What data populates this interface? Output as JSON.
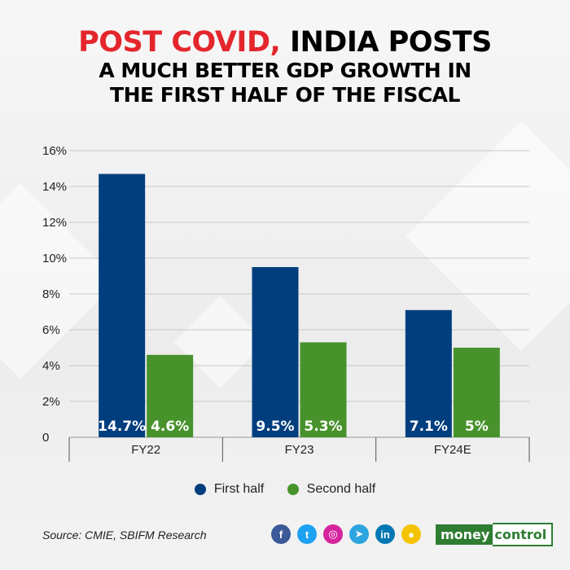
{
  "title": {
    "line1_highlight": "POST COVID,",
    "line1_rest": " INDIA POSTS",
    "line2": "A MUCH BETTER GDP GROWTH IN",
    "line3": "THE FIRST HALF OF THE FISCAL"
  },
  "chart_data": {
    "type": "bar",
    "categories": [
      "FY22",
      "FY23",
      "FY24E"
    ],
    "series": [
      {
        "name": "First half",
        "values": [
          14.7,
          9.5,
          7.1
        ],
        "labels": [
          "14.7%",
          "9.5%",
          "7.1%"
        ],
        "color": "#003e7e"
      },
      {
        "name": "Second half",
        "values": [
          4.6,
          5.3,
          5
        ],
        "labels": [
          "4.6%",
          "5.3%",
          "5%"
        ],
        "color": "#48922c"
      }
    ],
    "ylim": [
      0,
      16
    ],
    "yticks": [
      0,
      2,
      4,
      6,
      8,
      10,
      12,
      14,
      16
    ],
    "ytick_labels": [
      "0",
      "2%",
      "4%",
      "6%",
      "8%",
      "10%",
      "12%",
      "14%",
      "16%"
    ],
    "grid": true,
    "legend": "bottom"
  },
  "source": "Source: CMIE, SBIFM Research",
  "social": [
    {
      "icon": "facebook-icon",
      "glyph": "f",
      "color": "#3b5998"
    },
    {
      "icon": "twitter-icon",
      "glyph": "t",
      "color": "#1da1f2"
    },
    {
      "icon": "instagram-icon",
      "glyph": "◎",
      "color": "#d6249f"
    },
    {
      "icon": "telegram-icon",
      "glyph": "➤",
      "color": "#2ca5e0"
    },
    {
      "icon": "linkedin-icon",
      "glyph": "in",
      "color": "#0077b5"
    },
    {
      "icon": "koo-icon",
      "glyph": "●",
      "color": "#f5c400"
    }
  ],
  "brand": {
    "part1": "money",
    "part2": "control"
  }
}
